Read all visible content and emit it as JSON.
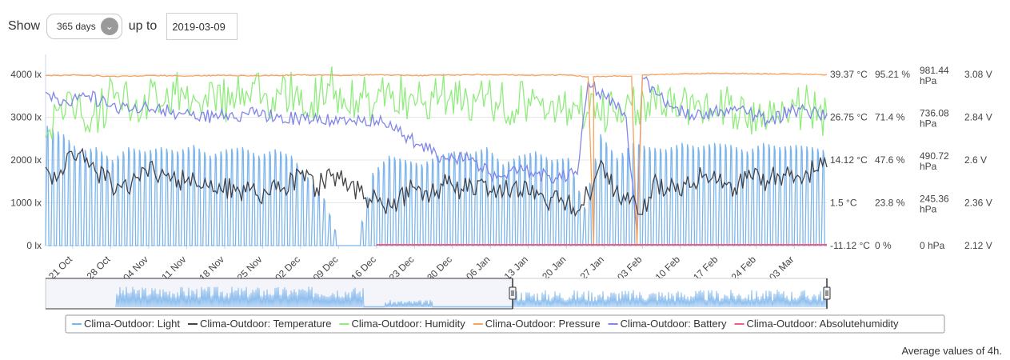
{
  "controls": {
    "show_label": "Show",
    "range_value": "365 days",
    "upto_label": "up to",
    "date_value": "2019-03-09"
  },
  "footer": {
    "text": "Average values of 4h."
  },
  "colors": {
    "light": "#7cb5ec",
    "temperature": "#434348",
    "humidity": "#90ed7d",
    "pressure": "#f7a35c",
    "battery": "#8085e9",
    "absolutehumidity": "#f15c80"
  },
  "chart_data": {
    "type": "line",
    "x_axis": {
      "start_date": "2018-10-16",
      "end_date": "2019-03-09",
      "tick_labels": [
        "21 Oct",
        "28 Oct",
        "04 Nov",
        "11 Nov",
        "18 Nov",
        "25 Nov",
        "02 Dec",
        "09 Dec",
        "16 Dec",
        "23 Dec",
        "30 Dec",
        "06 Jan",
        "13 Jan",
        "20 Jan",
        "27 Jan",
        "03 Feb",
        "10 Feb",
        "17 Feb",
        "24 Feb",
        "03 Mar"
      ],
      "tick_dates": [
        "2018-10-21",
        "2018-10-28",
        "2018-11-04",
        "2018-11-11",
        "2018-11-18",
        "2018-11-25",
        "2018-12-02",
        "2018-12-09",
        "2018-12-16",
        "2018-12-23",
        "2018-12-30",
        "2019-01-06",
        "2019-01-13",
        "2019-01-20",
        "2019-01-27",
        "2019-02-03",
        "2019-02-10",
        "2019-02-17",
        "2019-02-24",
        "2019-03-03"
      ]
    },
    "y_axes": [
      {
        "series": "Light",
        "labels": [
          "0 lx",
          "1000 lx",
          "2000 lx",
          "3000 lx",
          "4000 lx"
        ],
        "ylim": [
          0,
          4000
        ]
      },
      {
        "series": "Temperature",
        "labels": [
          "-11.12 °C",
          "1.5 °C",
          "14.12 °C",
          "26.75 °C",
          "39.37 °C"
        ],
        "ylim": [
          -11.12,
          39.37
        ]
      },
      {
        "series": "Humidity",
        "labels": [
          "0 %",
          "23.8 %",
          "47.6 %",
          "71.4 %",
          "95.21 %"
        ],
        "ylim": [
          0,
          95.21
        ]
      },
      {
        "series": "Pressure",
        "labels": [
          "0 hPa",
          "245.36 hPa",
          "490.72 hPa",
          "736.08 hPa",
          "981.44 hPa"
        ],
        "ylim": [
          0,
          981.44
        ]
      },
      {
        "series": "Battery",
        "labels": [
          "2.12 V",
          "2.36 V",
          "2.6 V",
          "2.84 V",
          "3.08 V"
        ],
        "ylim": [
          2.12,
          3.08
        ]
      }
    ],
    "series": [
      {
        "name": "Clima-Outdoor: Light",
        "key": "light",
        "unit": "lx",
        "days": [
          {
            "d": "2018-10-16",
            "peak": 2800
          },
          {
            "d": "2018-10-19",
            "peak": 2600
          },
          {
            "d": "2018-10-22",
            "peak": 2200
          },
          {
            "d": "2018-10-25",
            "peak": 2300
          },
          {
            "d": "2018-10-28",
            "peak": 2000
          },
          {
            "d": "2018-10-31",
            "peak": 2300
          },
          {
            "d": "2018-11-03",
            "peak": 2200
          },
          {
            "d": "2018-11-06",
            "peak": 2300
          },
          {
            "d": "2018-11-09",
            "peak": 2200
          },
          {
            "d": "2018-11-12",
            "peak": 2350
          },
          {
            "d": "2018-11-15",
            "peak": 2100
          },
          {
            "d": "2018-11-18",
            "peak": 2250
          },
          {
            "d": "2018-11-21",
            "peak": 2300
          },
          {
            "d": "2018-11-24",
            "peak": 2100
          },
          {
            "d": "2018-11-27",
            "peak": 2250
          },
          {
            "d": "2018-11-30",
            "peak": 2100
          },
          {
            "d": "2018-12-03",
            "peak": 1600
          },
          {
            "d": "2018-12-06",
            "peak": 1100
          },
          {
            "d": "2018-12-09",
            "peak": 0
          },
          {
            "d": "2018-12-12",
            "peak": 0
          },
          {
            "d": "2018-12-15",
            "peak": 1700
          },
          {
            "d": "2018-12-18",
            "peak": 2100
          },
          {
            "d": "2018-12-21",
            "peak": 2000
          },
          {
            "d": "2018-12-24",
            "peak": 1900
          },
          {
            "d": "2018-12-27",
            "peak": 2100
          },
          {
            "d": "2018-12-30",
            "peak": 2200
          },
          {
            "d": "2019-01-02",
            "peak": 2150
          },
          {
            "d": "2019-01-05",
            "peak": 2300
          },
          {
            "d": "2019-01-08",
            "peak": 1900
          },
          {
            "d": "2019-01-11",
            "peak": 2100
          },
          {
            "d": "2019-01-14",
            "peak": 2200
          },
          {
            "d": "2019-01-17",
            "peak": 2000
          },
          {
            "d": "2019-01-20",
            "peak": 2050
          },
          {
            "d": "2019-01-23",
            "peak": 900
          },
          {
            "d": "2019-01-26",
            "peak": 2600
          },
          {
            "d": "2019-01-29",
            "peak": 2050
          },
          {
            "d": "2019-02-01",
            "peak": 2400
          },
          {
            "d": "2019-02-04",
            "peak": 2300
          },
          {
            "d": "2019-02-07",
            "peak": 2250
          },
          {
            "d": "2019-02-10",
            "peak": 2400
          },
          {
            "d": "2019-02-13",
            "peak": 2300
          },
          {
            "d": "2019-02-16",
            "peak": 2400
          },
          {
            "d": "2019-02-19",
            "peak": 2350
          },
          {
            "d": "2019-02-22",
            "peak": 2200
          },
          {
            "d": "2019-02-25",
            "peak": 2400
          },
          {
            "d": "2019-02-28",
            "peak": 2300
          },
          {
            "d": "2019-03-03",
            "peak": 2350
          },
          {
            "d": "2019-03-06",
            "peak": 2300
          },
          {
            "d": "2019-03-09",
            "peak": 2200
          }
        ]
      },
      {
        "name": "Clima-Outdoor: Temperature",
        "key": "temperature",
        "unit": "°C",
        "points": [
          [
            "2018-10-16",
            12
          ],
          [
            "2018-10-18",
            8
          ],
          [
            "2018-10-20",
            16
          ],
          [
            "2018-10-22",
            16
          ],
          [
            "2018-10-24",
            12
          ],
          [
            "2018-10-27",
            8
          ],
          [
            "2018-10-30",
            6
          ],
          [
            "2018-11-02",
            9
          ],
          [
            "2018-11-05",
            11
          ],
          [
            "2018-11-08",
            8
          ],
          [
            "2018-11-11",
            8
          ],
          [
            "2018-11-14",
            6
          ],
          [
            "2018-11-17",
            7
          ],
          [
            "2018-11-20",
            5
          ],
          [
            "2018-11-23",
            6
          ],
          [
            "2018-11-26",
            4
          ],
          [
            "2018-11-29",
            6
          ],
          [
            "2018-12-02",
            10
          ],
          [
            "2018-12-05",
            6
          ],
          [
            "2018-12-08",
            10
          ],
          [
            "2018-12-11",
            6
          ],
          [
            "2018-12-14",
            3
          ],
          [
            "2018-12-17",
            1
          ],
          [
            "2018-12-20",
            2
          ],
          [
            "2018-12-23",
            6
          ],
          [
            "2018-12-26",
            4
          ],
          [
            "2018-12-29",
            7
          ],
          [
            "2019-01-01",
            5
          ],
          [
            "2019-01-04",
            8
          ],
          [
            "2019-01-07",
            3
          ],
          [
            "2019-01-10",
            6
          ],
          [
            "2019-01-13",
            4
          ],
          [
            "2019-01-16",
            2
          ],
          [
            "2019-01-19",
            3
          ],
          [
            "2019-01-22",
            -1
          ],
          [
            "2019-01-24",
            4
          ],
          [
            "2019-01-26",
            12
          ],
          [
            "2019-01-29",
            5
          ],
          [
            "2019-02-01",
            3
          ],
          [
            "2019-02-03",
            -2
          ],
          [
            "2019-02-05",
            8
          ],
          [
            "2019-02-08",
            5
          ],
          [
            "2019-02-11",
            7
          ],
          [
            "2019-02-14",
            9
          ],
          [
            "2019-02-17",
            8
          ],
          [
            "2019-02-20",
            6
          ],
          [
            "2019-02-23",
            9
          ],
          [
            "2019-02-26",
            8
          ],
          [
            "2019-03-01",
            10
          ],
          [
            "2019-03-04",
            9
          ],
          [
            "2019-03-07",
            11
          ],
          [
            "2019-03-09",
            12
          ]
        ]
      },
      {
        "name": "Clima-Outdoor: Humidity",
        "key": "humidity",
        "unit": "%",
        "points": [
          [
            "2018-10-16",
            60
          ],
          [
            "2018-10-18",
            75
          ],
          [
            "2018-10-20",
            85
          ],
          [
            "2018-10-23",
            70
          ],
          [
            "2018-10-26",
            75
          ],
          [
            "2018-10-29",
            85
          ],
          [
            "2018-11-01",
            75
          ],
          [
            "2018-11-04",
            82
          ],
          [
            "2018-11-07",
            80
          ],
          [
            "2018-11-10",
            88
          ],
          [
            "2018-11-13",
            80
          ],
          [
            "2018-11-16",
            85
          ],
          [
            "2018-11-19",
            78
          ],
          [
            "2018-11-22",
            86
          ],
          [
            "2018-11-25",
            82
          ],
          [
            "2018-11-28",
            85
          ],
          [
            "2018-12-01",
            84
          ],
          [
            "2018-12-04",
            80
          ],
          [
            "2018-12-07",
            90
          ],
          [
            "2018-12-10",
            82
          ],
          [
            "2018-12-13",
            85
          ],
          [
            "2018-12-16",
            80
          ],
          [
            "2018-12-19",
            86
          ],
          [
            "2018-12-22",
            82
          ],
          [
            "2018-12-25",
            80
          ],
          [
            "2018-12-28",
            84
          ],
          [
            "2019-01-01",
            78
          ],
          [
            "2019-01-04",
            86
          ],
          [
            "2019-01-07",
            80
          ],
          [
            "2019-01-10",
            75
          ],
          [
            "2019-01-13",
            82
          ],
          [
            "2019-01-16",
            70
          ],
          [
            "2019-01-19",
            74
          ],
          [
            "2019-01-22",
            78
          ],
          [
            "2019-01-26",
            72
          ],
          [
            "2019-01-29",
            74
          ],
          [
            "2019-02-01",
            78
          ],
          [
            "2019-02-04",
            80
          ],
          [
            "2019-02-07",
            76
          ],
          [
            "2019-02-10",
            78
          ],
          [
            "2019-02-13",
            80
          ],
          [
            "2019-02-16",
            74
          ],
          [
            "2019-02-19",
            78
          ],
          [
            "2019-02-22",
            70
          ],
          [
            "2019-02-25",
            66
          ],
          [
            "2019-02-28",
            72
          ],
          [
            "2019-03-03",
            78
          ],
          [
            "2019-03-06",
            76
          ],
          [
            "2019-03-09",
            72
          ]
        ]
      },
      {
        "name": "Clima-Outdoor: Pressure",
        "key": "pressure",
        "unit": "hPa",
        "points": [
          [
            "2018-10-16",
            975
          ],
          [
            "2018-10-22",
            978
          ],
          [
            "2018-10-28",
            970
          ],
          [
            "2018-11-04",
            975
          ],
          [
            "2018-11-11",
            972
          ],
          [
            "2018-11-18",
            976
          ],
          [
            "2018-11-25",
            974
          ],
          [
            "2018-12-02",
            978
          ],
          [
            "2018-12-09",
            976
          ],
          [
            "2018-12-16",
            980
          ],
          [
            "2018-12-23",
            975
          ],
          [
            "2018-12-30",
            978
          ],
          [
            "2019-01-06",
            980
          ],
          [
            "2019-01-13",
            976
          ],
          [
            "2019-01-20",
            978
          ],
          [
            "2019-01-24",
            968
          ],
          [
            "2019-01-25",
            0
          ],
          [
            "2019-01-25",
            970
          ],
          [
            "2019-02-01",
            972
          ],
          [
            "2019-02-02",
            0
          ],
          [
            "2019-02-03",
            978
          ],
          [
            "2019-02-10",
            985
          ],
          [
            "2019-02-17",
            988
          ],
          [
            "2019-02-24",
            985
          ],
          [
            "2019-03-03",
            984
          ],
          [
            "2019-03-09",
            980
          ]
        ]
      },
      {
        "name": "Clima-Outdoor: Battery",
        "key": "battery",
        "unit": "V",
        "points": [
          [
            "2018-10-16",
            2.98
          ],
          [
            "2018-10-20",
            2.92
          ],
          [
            "2018-10-24",
            2.96
          ],
          [
            "2018-10-28",
            2.9
          ],
          [
            "2018-11-03",
            2.9
          ],
          [
            "2018-11-10",
            2.86
          ],
          [
            "2018-11-16",
            2.84
          ],
          [
            "2018-11-22",
            2.86
          ],
          [
            "2018-11-28",
            2.84
          ],
          [
            "2018-12-04",
            2.82
          ],
          [
            "2018-12-10",
            2.84
          ],
          [
            "2018-12-16",
            2.82
          ],
          [
            "2018-12-20",
            2.76
          ],
          [
            "2018-12-24",
            2.68
          ],
          [
            "2018-12-28",
            2.62
          ],
          [
            "2019-01-02",
            2.6
          ],
          [
            "2019-01-06",
            2.52
          ],
          [
            "2019-01-12",
            2.54
          ],
          [
            "2019-01-18",
            2.5
          ],
          [
            "2019-01-22",
            2.52
          ],
          [
            "2019-01-24",
            3.04
          ],
          [
            "2019-01-27",
            2.96
          ],
          [
            "2019-01-31",
            2.84
          ],
          [
            "2019-02-02",
            2.2
          ],
          [
            "2019-02-03",
            3.06
          ],
          [
            "2019-02-08",
            2.9
          ],
          [
            "2019-02-14",
            2.84
          ],
          [
            "2019-02-20",
            2.9
          ],
          [
            "2019-02-26",
            2.82
          ],
          [
            "2019-03-03",
            2.88
          ],
          [
            "2019-03-09",
            2.86
          ]
        ]
      },
      {
        "name": "Clima-Outdoor: Absolutehumidity",
        "key": "absolutehumidity",
        "unit": "",
        "points": [
          [
            "2018-12-16",
            1
          ],
          [
            "2019-03-09",
            1
          ]
        ]
      }
    ],
    "navigator": {
      "selected_start": "2018-10-16",
      "selected_end": "2019-03-09"
    },
    "legend_placement": "bottom-center",
    "grid": true
  }
}
